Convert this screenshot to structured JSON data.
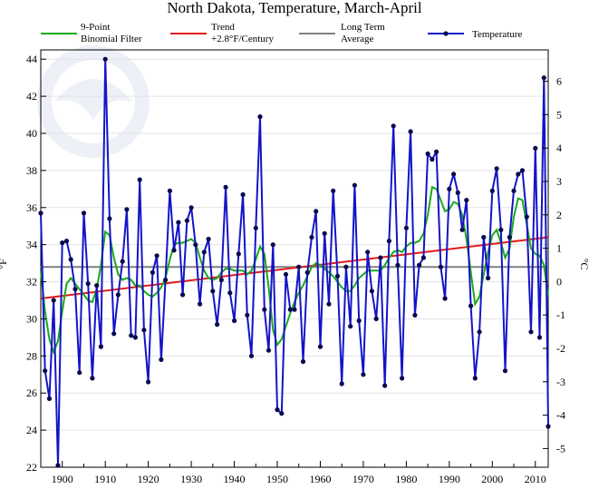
{
  "chart_data": {
    "type": "line",
    "title": "North Dakota, Temperature, March-April",
    "ylabel": "°F",
    "y2label": "°C",
    "xlim": [
      1895,
      2013
    ],
    "ylim": [
      22,
      44.5
    ],
    "y2lim": [
      -5.56,
      6.94
    ],
    "x_ticks": [
      1900,
      1910,
      1920,
      1930,
      1940,
      1950,
      1960,
      1970,
      1980,
      1990,
      2000,
      2010
    ],
    "y_ticks": [
      22,
      24,
      26,
      28,
      30,
      32,
      34,
      36,
      38,
      40,
      42,
      44
    ],
    "y2_ticks": [
      -5,
      -4,
      -3,
      -2,
      -1,
      0,
      1,
      2,
      3,
      4,
      5,
      6
    ],
    "grid": true,
    "legend_position": "top",
    "legend": [
      {
        "label": "9-Point\nBinomial Filter",
        "color": "#1aaa1a"
      },
      {
        "label": "Trend\n+2.8°F/Century",
        "color": "#e41a1a"
      },
      {
        "label": "Long Term\nAverage",
        "color": "#808080"
      },
      {
        "label": "Temperature",
        "color": "#1414c8"
      }
    ],
    "long_term_average": 32.8,
    "trend": {
      "x": [
        1895,
        2013
      ],
      "y": [
        31.1,
        34.4
      ]
    },
    "series": [
      {
        "name": "Temperature",
        "color": "#1414c8",
        "x": [
          1895,
          1896,
          1897,
          1898,
          1899,
          1900,
          1901,
          1902,
          1903,
          1904,
          1905,
          1906,
          1907,
          1908,
          1909,
          1910,
          1911,
          1912,
          1913,
          1914,
          1915,
          1916,
          1917,
          1918,
          1919,
          1920,
          1921,
          1922,
          1923,
          1924,
          1925,
          1926,
          1927,
          1928,
          1929,
          1930,
          1931,
          1932,
          1933,
          1934,
          1935,
          1936,
          1937,
          1938,
          1939,
          1940,
          1941,
          1942,
          1943,
          1944,
          1945,
          1946,
          1947,
          1948,
          1949,
          1950,
          1951,
          1952,
          1953,
          1954,
          1955,
          1956,
          1957,
          1958,
          1959,
          1960,
          1961,
          1962,
          1963,
          1964,
          1965,
          1966,
          1967,
          1968,
          1969,
          1970,
          1971,
          1972,
          1973,
          1974,
          1975,
          1976,
          1977,
          1978,
          1979,
          1980,
          1981,
          1982,
          1983,
          1984,
          1985,
          1986,
          1987,
          1988,
          1989,
          1990,
          1991,
          1992,
          1993,
          1994,
          1995,
          1996,
          1997,
          1998,
          1999,
          2000,
          2001,
          2002,
          2003,
          2004,
          2005,
          2006,
          2007,
          2008,
          2009,
          2010,
          2011,
          2012,
          2013
        ],
        "y": [
          35.7,
          27.2,
          25.7,
          31,
          22.1,
          34.1,
          34.2,
          33.2,
          31.6,
          27.1,
          35.7,
          31.9,
          26.8,
          31.8,
          28.5,
          44,
          35.4,
          29.2,
          31.3,
          33.1,
          35.9,
          29.1,
          29,
          37.5,
          29.4,
          26.6,
          32.5,
          33.4,
          27.8,
          32.1,
          36.9,
          33.7,
          35.2,
          31.3,
          35.3,
          36,
          34,
          30.8,
          33.6,
          34.3,
          31.5,
          29.7,
          32.1,
          37.1,
          31.4,
          29.9,
          33.5,
          36.7,
          30.2,
          28,
          34.9,
          40.9,
          30.5,
          28.3,
          34,
          25.1,
          24.9,
          32.4,
          30.5,
          30.5,
          32.8,
          27.7,
          32.5,
          34.4,
          35.8,
          28.5,
          34.6,
          30.8,
          36.9,
          32.3,
          26.5,
          32.8,
          29.6,
          37.2,
          29.9,
          27,
          33.6,
          31.5,
          30,
          33.3,
          26.4,
          34.2,
          40.4,
          32.9,
          26.8,
          34.9,
          40.1,
          30.2,
          32.9,
          33.3,
          38.9,
          38.6,
          39,
          32.8,
          31.1,
          37,
          37.8,
          36.8,
          34.8,
          36.4,
          30.7,
          26.8,
          29.3,
          34.4,
          32.2,
          36.9,
          38.1,
          34.8,
          27.2,
          34.4,
          36.9,
          37.8,
          38,
          35.5,
          29.3,
          39.2,
          29,
          43,
          24.2
        ]
      },
      {
        "name": "9-Point Binomial Filter",
        "color": "#1aaa1a",
        "x": [
          1895,
          1896,
          1897,
          1898,
          1899,
          1900,
          1901,
          1902,
          1903,
          1904,
          1905,
          1906,
          1907,
          1908,
          1909,
          1910,
          1911,
          1912,
          1913,
          1914,
          1915,
          1916,
          1917,
          1918,
          1919,
          1920,
          1921,
          1922,
          1923,
          1924,
          1925,
          1926,
          1927,
          1928,
          1929,
          1930,
          1931,
          1932,
          1933,
          1934,
          1935,
          1936,
          1937,
          1938,
          1939,
          1940,
          1941,
          1942,
          1943,
          1944,
          1945,
          1946,
          1947,
          1948,
          1949,
          1950,
          1951,
          1952,
          1953,
          1954,
          1955,
          1956,
          1957,
          1958,
          1959,
          1960,
          1961,
          1962,
          1963,
          1964,
          1965,
          1966,
          1967,
          1968,
          1969,
          1970,
          1971,
          1972,
          1973,
          1974,
          1975,
          1976,
          1977,
          1978,
          1979,
          1980,
          1981,
          1982,
          1983,
          1984,
          1985,
          1986,
          1987,
          1988,
          1989,
          1990,
          1991,
          1992,
          1993,
          1994,
          1995,
          1996,
          1997,
          1998,
          1999,
          2000,
          2001,
          2002,
          2003,
          2004,
          2005,
          2006,
          2007,
          2008,
          2009,
          2010,
          2011,
          2012,
          2013
        ],
        "y": [
          32.6,
          30.4,
          28.9,
          28.2,
          28.8,
          30.4,
          31.9,
          32.2,
          31.9,
          31.6,
          31.3,
          31,
          30.9,
          31.6,
          32.9,
          34.7,
          34.5,
          33.3,
          32.4,
          32.1,
          32.2,
          32.1,
          31.8,
          31.8,
          31.5,
          31.3,
          31.2,
          31.4,
          31.7,
          32.2,
          33.2,
          34,
          34.1,
          34.1,
          34.2,
          34.3,
          34.1,
          33.3,
          32.6,
          32.2,
          32.1,
          32.2,
          32.5,
          32.7,
          32.7,
          32.6,
          32.6,
          32.6,
          32.4,
          32.6,
          33.2,
          33.9,
          33.5,
          31.7,
          29.4,
          28.6,
          28.9,
          29.6,
          30.3,
          30.9,
          31.4,
          31.8,
          32.3,
          32.8,
          33,
          32.9,
          32.7,
          32.5,
          32.3,
          32,
          31.7,
          31.5,
          31.5,
          31.8,
          32.2,
          32.4,
          32.6,
          32.6,
          32.6,
          32.6,
          32.9,
          33.3,
          33.6,
          33.7,
          33.6,
          33.9,
          34.1,
          34.1,
          34.2,
          34.6,
          35.6,
          37.1,
          37,
          36.4,
          35.8,
          35.9,
          36.3,
          36.2,
          35.6,
          34.3,
          32.5,
          30.8,
          31.2,
          32.4,
          33.6,
          34.5,
          34.8,
          34.1,
          33.3,
          33.8,
          35.5,
          36.5,
          36.4,
          35.1,
          33.8,
          33.5,
          33.4,
          32.9,
          31.2
        ]
      }
    ]
  }
}
